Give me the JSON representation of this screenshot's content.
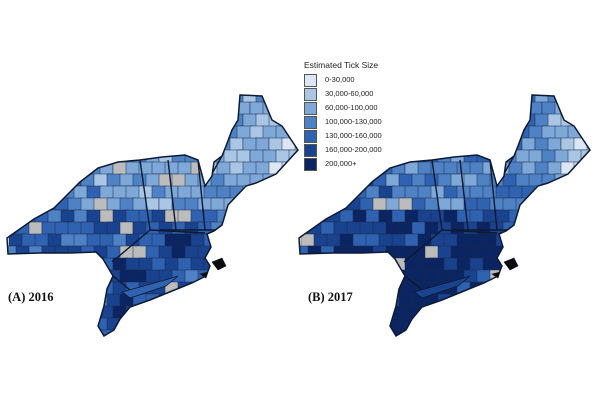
{
  "legend": {
    "title": "Estimated Tick Size",
    "items": [
      {
        "label": "0-30,000",
        "color": "#dce6f4"
      },
      {
        "label": "30,000-60,000",
        "color": "#a9c6e5"
      },
      {
        "label": "60,000-100,000",
        "color": "#7ea8d8"
      },
      {
        "label": "100,000-130,000",
        "color": "#4f82c4"
      },
      {
        "label": "130,000-160,000",
        "color": "#2f62b0"
      },
      {
        "label": "160,000-200,000",
        "color": "#1a438f"
      },
      {
        "label": "200,000+",
        "color": "#0b2563"
      }
    ]
  },
  "no_data_color": "#bcbcbc",
  "panels": [
    {
      "label": "(A) 2016"
    },
    {
      "label": "(B) 2017"
    }
  ]
}
